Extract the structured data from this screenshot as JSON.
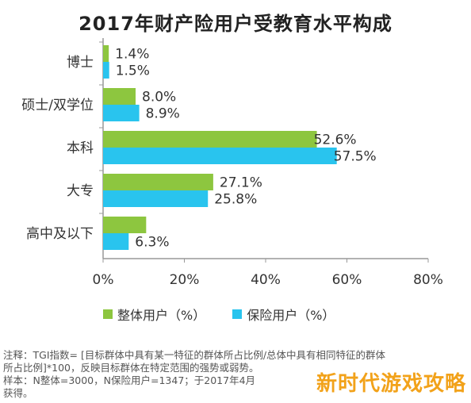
{
  "title": "2017年财产险用户受教育水平构成",
  "colors": {
    "overall": "#8dc63f",
    "insurance": "#29c4ee",
    "axis": "#999999",
    "grid": "#dddddd"
  },
  "chart_data": {
    "type": "bar",
    "orientation": "horizontal",
    "categories": [
      "博士",
      "硕士/双学位",
      "本科",
      "大专",
      "高中及以下"
    ],
    "series": [
      {
        "name": "整体用户（%）",
        "values": [
          1.4,
          8.0,
          52.6,
          27.1,
          10.6
        ],
        "labels": [
          "1.4%",
          "8.0%",
          "52.6%",
          "27.1%",
          ""
        ]
      },
      {
        "name": "保险用户（%）",
        "values": [
          1.5,
          8.9,
          57.5,
          25.8,
          6.3
        ],
        "labels": [
          "1.5%",
          "8.9%",
          "57.5%",
          "25.8%",
          "6.3%"
        ]
      }
    ],
    "xlim": [
      0,
      80
    ],
    "xticks": [
      "0%",
      "20%",
      "40%",
      "60%",
      "80%"
    ],
    "legend_position": "bottom"
  },
  "legend": [
    {
      "label": "整体用户（%）",
      "color": "#8dc63f"
    },
    {
      "label": "保险用户（%）",
      "color": "#29c4ee"
    }
  ],
  "notes": [
    "注释：TGI指数= [目标群体中具有某一特征的群体所占比例/总体中具有相同特征的群体",
    "所占比例]*100，反映目标群体在特定范围的强势或弱势。",
    "样本：N整体=3000，N保险用户=1347；于2017年4月",
    "获得。"
  ],
  "watermark": "新时代游戏攻略"
}
